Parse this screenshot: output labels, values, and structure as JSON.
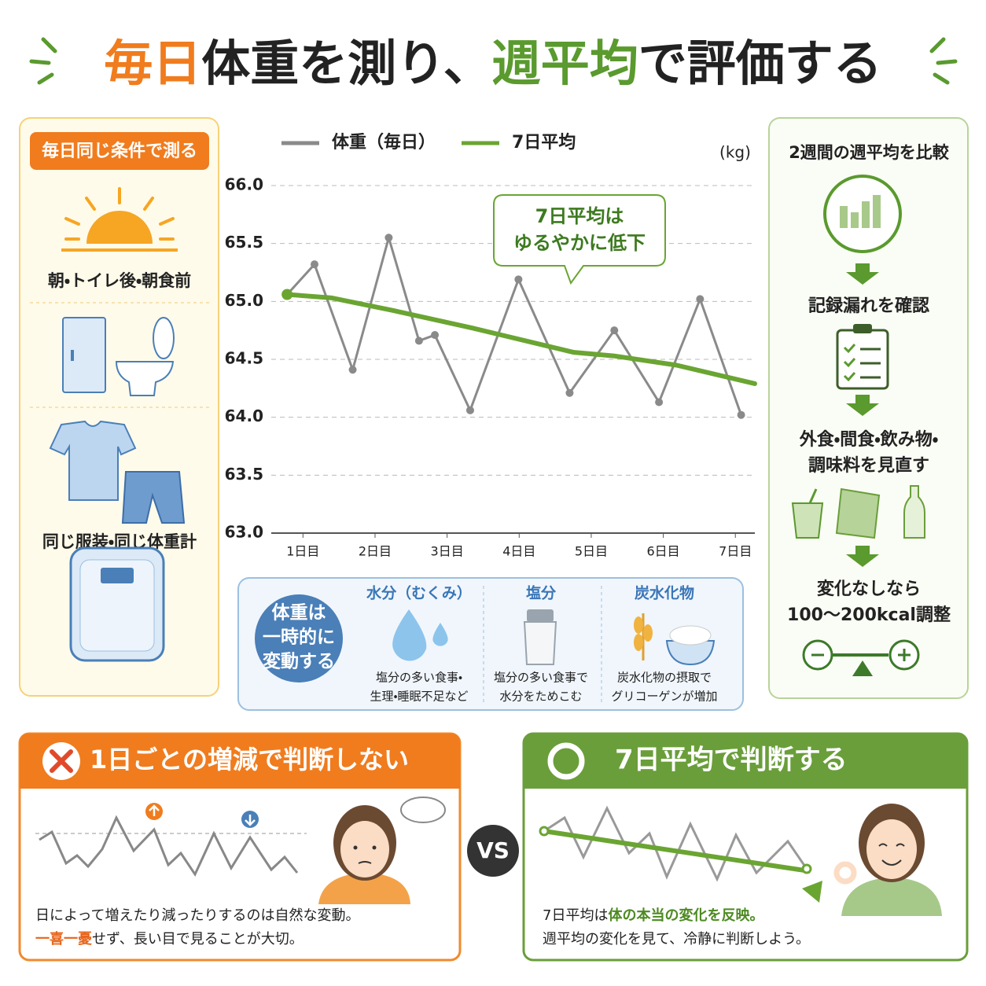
{
  "title": {
    "parts": [
      {
        "text": "毎日",
        "color": "#f07c1e"
      },
      {
        "text": "体重を測り、",
        "color": "#222222"
      },
      {
        "text": "週平均",
        "color": "#5a9a2e"
      },
      {
        "text": "で評価する",
        "color": "#222222"
      }
    ]
  },
  "left_panel": {
    "badge": "毎日同じ条件で測る",
    "items": [
      "朝・トイレ後・朝食前",
      "同じ服装・同じ体重計"
    ]
  },
  "chart_data": {
    "type": "line",
    "unit": "(kg)",
    "annotation": [
      "7日平均は",
      "ゆるやかに低下"
    ],
    "xlim": [
      0.56,
      7.27
    ],
    "xticks": [
      {
        "value": 1,
        "label": "1日目"
      },
      {
        "value": 2,
        "label": "2日目"
      },
      {
        "value": 3,
        "label": "3日目"
      },
      {
        "value": 4,
        "label": "4日目"
      },
      {
        "value": 5,
        "label": "5日目"
      },
      {
        "value": 6,
        "label": "6日目"
      },
      {
        "value": 7,
        "label": "7日目"
      }
    ],
    "ylim": [
      63.0,
      66.0
    ],
    "yticks": [
      {
        "value": 63.0,
        "label": "63.0"
      },
      63.5,
      {
        "value": 64.0,
        "label": "64.0"
      },
      64.5,
      {
        "value": 65.0,
        "label": "65.0"
      },
      65.5,
      {
        "value": 66.0,
        "label": "66.0"
      }
    ],
    "grid": true,
    "series": [
      {
        "name": "体重（毎日）",
        "color": "#8a8a8a",
        "markers": true,
        "x": [
          0.78,
          1.16,
          1.69,
          2.19,
          2.61,
          2.83,
          3.32,
          3.99,
          4.7,
          5.32,
          5.94,
          6.51,
          7.08
        ],
        "values": [
          65.06,
          65.32,
          64.41,
          65.55,
          64.66,
          64.71,
          64.06,
          65.19,
          64.21,
          64.75,
          64.13,
          65.02,
          64.02
        ]
      },
      {
        "name": "7日平均",
        "color": "#6aa532",
        "markers": false,
        "x": [
          0.78,
          1.4,
          2.26,
          3.35,
          4.76,
          5.31,
          6.18,
          7.27
        ],
        "values": [
          65.06,
          65.03,
          64.92,
          64.77,
          64.56,
          64.53,
          64.45,
          64.29
        ]
      }
    ]
  },
  "fluctuation": {
    "circle": [
      "体重は",
      "一時的に",
      "変動する"
    ],
    "columns": [
      {
        "title": "水分（むくみ）",
        "lines": [
          "塩分の多い食事・",
          "生理・睡眠不足など"
        ]
      },
      {
        "title": "塩分",
        "lines": [
          "塩分の多い食事で",
          "水分をためこむ"
        ]
      },
      {
        "title": "炭水化物",
        "lines": [
          "炭水化物の摂取で",
          "グリコーゲンが増加"
        ]
      }
    ]
  },
  "right_panel": {
    "header": "2週間の週平均を比較",
    "steps": [
      [
        "記録漏れを確認"
      ],
      [
        "外食・間食・飲み物・",
        "調味料を見直す"
      ],
      [
        "変化なしなら",
        "100〜200kcal調整"
      ]
    ]
  },
  "bad": {
    "header": "1日ごとの増減で判断しない",
    "line1": "日によって増えたり減ったりするのは自然な変動。",
    "line2_em": "一喜一憂",
    "line2_rest": "せず、長い目で見ることが大切。"
  },
  "vs": "VS",
  "good": {
    "header": "7日平均で判断する",
    "line1_lead": "7日平均は",
    "line1_em": "体の本当の変化を反映。",
    "line2": "週平均の変化を見て、冷静に判断しよう。"
  }
}
